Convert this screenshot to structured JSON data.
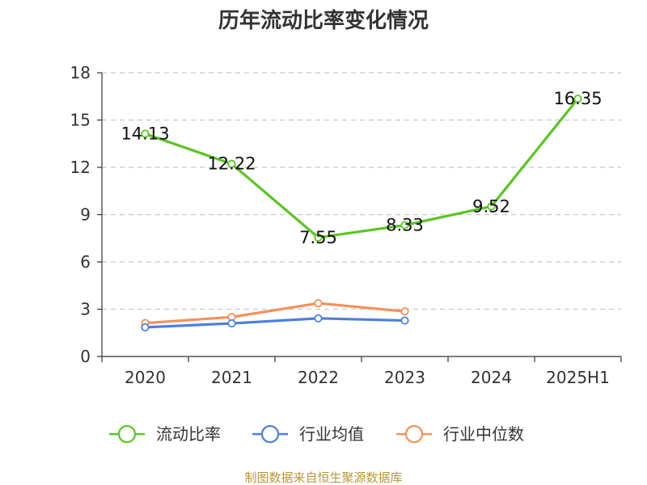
{
  "chart_data": {
    "type": "line",
    "title": "历年流动比率变化情况",
    "categories": [
      "2020",
      "2021",
      "2022",
      "2023",
      "2024",
      "2025H1"
    ],
    "ylim": [
      0,
      18
    ],
    "yticks": [
      0,
      3,
      6,
      9,
      12,
      15,
      18
    ],
    "grid": true,
    "legend_position": "bottom",
    "series": [
      {
        "name": "流动比率",
        "color": "#5cc424",
        "values": [
          14.13,
          12.22,
          7.55,
          8.33,
          9.52,
          16.35
        ],
        "labels": [
          "14.13",
          "12.22",
          "7.55",
          "8.33",
          "9.52",
          "16.35"
        ]
      },
      {
        "name": "行业均值",
        "color": "#4d7fdc",
        "values": [
          1.85,
          2.1,
          2.42,
          2.28,
          null,
          null
        ]
      },
      {
        "name": "行业中位数",
        "color": "#f4915d",
        "values": [
          2.12,
          2.5,
          3.38,
          2.86,
          null,
          null
        ]
      }
    ],
    "source": "制图数据来自恒生聚源数据库"
  }
}
